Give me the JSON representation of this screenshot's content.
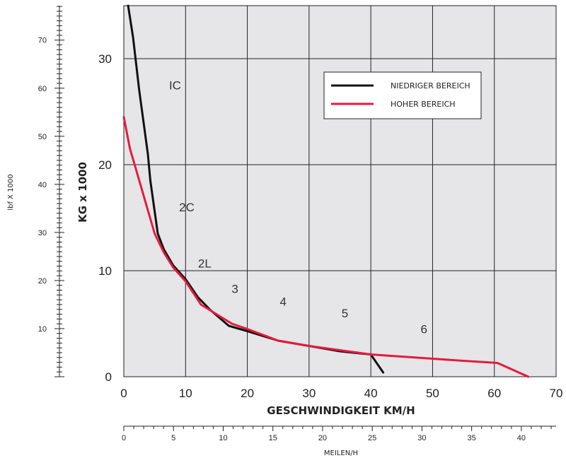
{
  "chart_data": {
    "type": "line",
    "xlabel": "GESCHWINDIGKEIT KM/H",
    "ylabel": "KG x 1000",
    "xlim": [
      0,
      70
    ],
    "ylim": [
      0,
      35
    ],
    "x_ticks": [
      "0",
      "10",
      "20",
      "30",
      "40",
      "50",
      "60",
      "70"
    ],
    "y_ticks": [
      "0",
      "10",
      "20",
      "30"
    ],
    "grid": true,
    "secondary_x": {
      "label": "MEILEN/H",
      "ticks": [
        "0",
        "5",
        "10",
        "15",
        "20",
        "25",
        "30",
        "35",
        "40"
      ]
    },
    "secondary_y": {
      "label": "lbf X 1000",
      "ticks": [
        "10",
        "20",
        "30",
        "40",
        "50",
        "60",
        "70"
      ]
    },
    "legend_position": "top-right",
    "region_labels": [
      "IC",
      "2C",
      "2L",
      "3",
      "4",
      "5",
      "6"
    ],
    "series": [
      {
        "name": "NIEDRIGER BEREICH",
        "color": "#111111",
        "x": [
          0.7,
          1.5,
          2.5,
          3.2,
          3.9,
          4.3,
          5.5,
          6.5,
          8.0,
          10.0,
          12.0,
          14.0,
          17.0,
          20.0,
          25.0,
          30.0,
          35.0,
          40.0,
          42.0
        ],
        "y": [
          35.0,
          32.0,
          27.0,
          24.0,
          21.0,
          18.5,
          13.5,
          12.0,
          10.5,
          9.2,
          7.5,
          6.3,
          4.8,
          4.3,
          3.4,
          2.9,
          2.4,
          2.1,
          0.4
        ]
      },
      {
        "name": "HOHER BEREICH",
        "color": "#e41b3f",
        "x": [
          0.0,
          1.0,
          2.0,
          3.0,
          4.0,
          5.0,
          6.5,
          8.0,
          10.0,
          12.5,
          17.5,
          20.0,
          25.0,
          30.0,
          35.0,
          40.0,
          45.0,
          50.0,
          55.0,
          60.5,
          65.5
        ],
        "y": [
          24.5,
          21.5,
          19.5,
          17.5,
          15.5,
          13.5,
          11.7,
          10.3,
          9.0,
          6.8,
          5.0,
          4.5,
          3.4,
          2.9,
          2.5,
          2.1,
          1.9,
          1.7,
          1.5,
          1.3,
          0.0
        ]
      }
    ]
  }
}
